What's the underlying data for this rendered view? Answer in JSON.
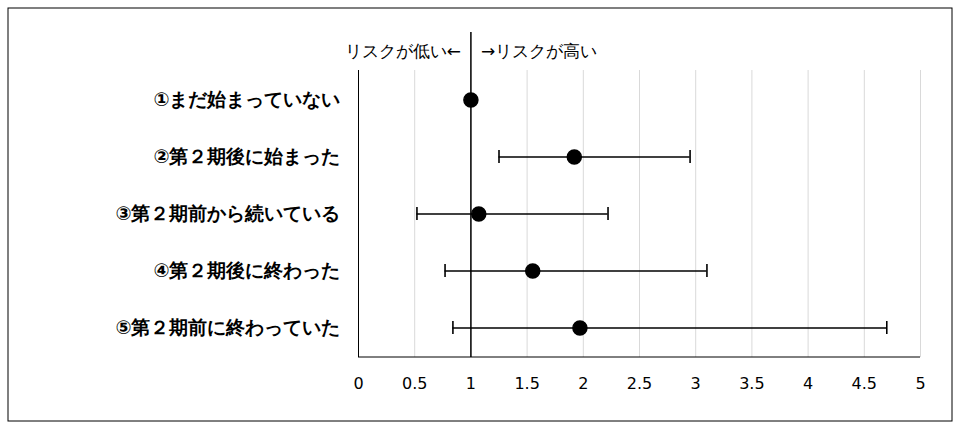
{
  "chart_data": {
    "type": "forest",
    "orientation": "horizontal",
    "annotations": [
      "リスクが低い←",
      "→リスクが高い"
    ],
    "reference": 1,
    "categories": [
      "①まだ始まっていない",
      "②第２期後に始まった",
      "③第２期前から続いている",
      "④第２期後に終わった",
      "⑤第２期前に終わっていた"
    ],
    "values": [
      1,
      1.92,
      1.07,
      1.55,
      1.97
    ],
    "ci_low": [
      null,
      1.25,
      0.52,
      0.77,
      0.84
    ],
    "ci_high": [
      null,
      2.95,
      2.22,
      3.1,
      4.7
    ],
    "xlim": [
      0,
      5
    ],
    "xticks": [
      0,
      0.5,
      1,
      1.5,
      2,
      2.5,
      3,
      3.5,
      4,
      4.5,
      5
    ],
    "grid": true,
    "color": "#000000",
    "marker": "circle"
  }
}
